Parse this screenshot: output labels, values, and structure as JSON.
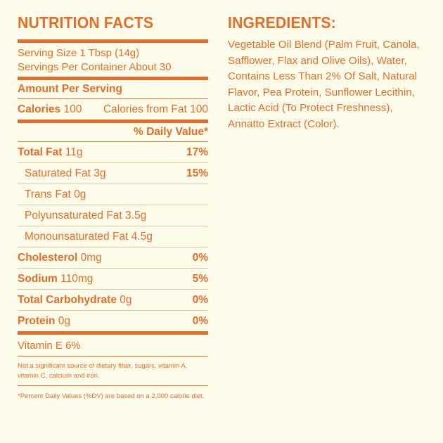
{
  "nutrition": {
    "title": "NUTRITION FACTS",
    "serving_size": "Serving Size 1 Tbsp (14g)",
    "servings_per_container": "Servings Per Container About 30",
    "amount_per_serving": "Amount Per Serving",
    "calories_label": "Calories",
    "calories_value": "100",
    "calories_from_fat": "Calories from Fat 100",
    "daily_value_header": "% Daily Value*",
    "rows": [
      {
        "label": "Total Fat",
        "amount": "11g",
        "dv": "17%",
        "bold": true,
        "indent": false
      },
      {
        "label": "Saturated Fat",
        "amount": "3g",
        "dv": "15%",
        "bold": false,
        "indent": true
      },
      {
        "label": "Trans Fat",
        "amount": "0g",
        "dv": "",
        "bold": false,
        "indent": true
      },
      {
        "label": "Polyunsaturated Fat",
        "amount": "3.5g",
        "dv": "",
        "bold": false,
        "indent": true
      },
      {
        "label": "Monounsaturated Fat",
        "amount": "4.5g",
        "dv": "",
        "bold": false,
        "indent": true
      },
      {
        "label": "Cholesterol",
        "amount": "0mg",
        "dv": "0%",
        "bold": true,
        "indent": false
      },
      {
        "label": "Sodium",
        "amount": "110mg",
        "dv": "5%",
        "bold": true,
        "indent": false
      },
      {
        "label": "Total Carbohydrate",
        "amount": "0g",
        "dv": "0%",
        "bold": true,
        "indent": false
      },
      {
        "label": "Protein",
        "amount": "0g",
        "dv": "0%",
        "bold": true,
        "indent": false
      }
    ],
    "vitamin": "Vitamin E 6%",
    "note": "Not a significant source of dietary fiber, sugars, vitamin A, vitamin C, calcium and iron.",
    "footnote": "*Percent Daily Values (%DV) are based on a 2,000 calorie diet."
  },
  "ingredients": {
    "title": "INGREDIENTS:",
    "text": "Vegetable Oil Blend (Palm Fruit, Canola, Safflower, Flax and Olive Oils), Water, Contains Less Than 2% Of Salt, Natural Flavor, Pea Protein, Sunflower Lecithin, Lactic Acid (To Protect Freshness), Annatto Extract (Color)."
  },
  "colors": {
    "accent": "#e36e2a",
    "background": "#fdfbe9",
    "divider_light": "#f1bf98"
  }
}
